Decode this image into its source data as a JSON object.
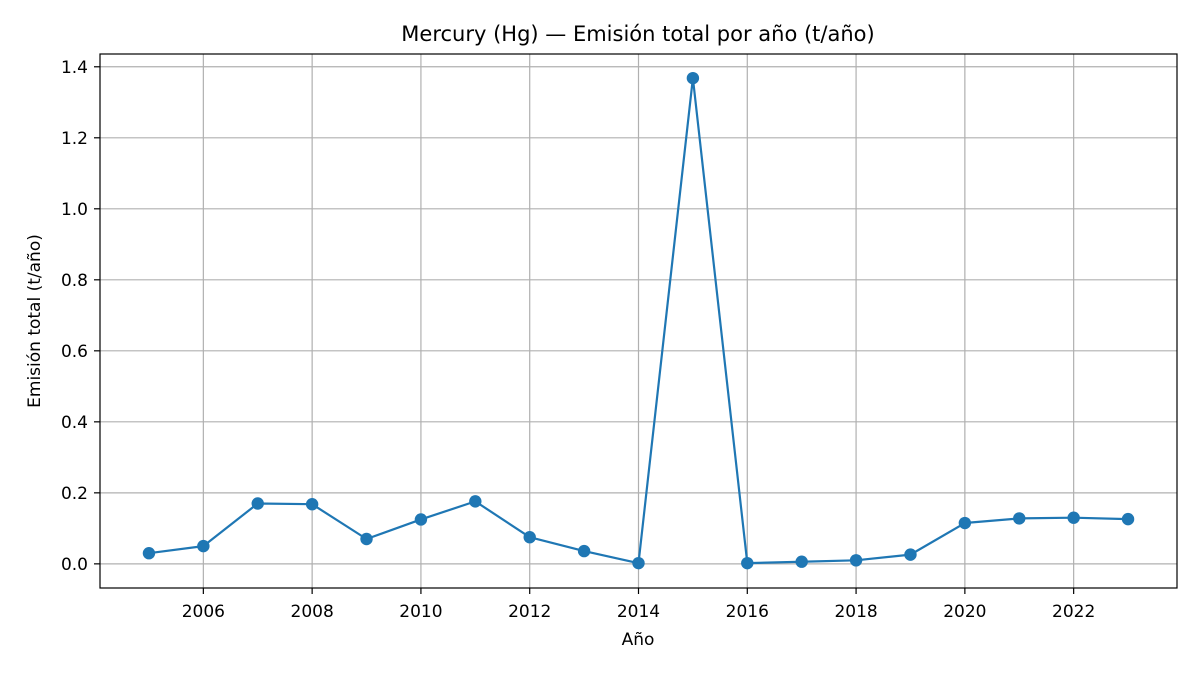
{
  "chart_data": {
    "type": "line",
    "title": "Mercury (Hg) — Emisión total por año (t/año)",
    "xlabel": "Año",
    "ylabel": "Emisión total (t/año)",
    "x": [
      2005,
      2006,
      2007,
      2008,
      2009,
      2010,
      2011,
      2012,
      2013,
      2014,
      2015,
      2016,
      2017,
      2018,
      2019,
      2020,
      2021,
      2022,
      2023
    ],
    "series": [
      {
        "values": [
          0.03,
          0.05,
          0.17,
          0.168,
          0.07,
          0.125,
          0.176,
          0.075,
          0.036,
          0.002,
          1.368,
          0.002,
          0.006,
          0.01,
          0.026,
          0.115,
          0.128,
          0.13,
          0.126
        ],
        "color": "#1f77b4",
        "marker": "circle"
      }
    ],
    "xlim": [
      2004.1,
      2023.9
    ],
    "ylim": [
      -0.068,
      1.436
    ],
    "xticks": [
      2006,
      2008,
      2010,
      2012,
      2014,
      2016,
      2018,
      2020,
      2022
    ],
    "yticks": [
      0.0,
      0.2,
      0.4,
      0.6,
      0.8,
      1.0,
      1.2,
      1.4
    ],
    "xtick_labels": [
      "2006",
      "2008",
      "2010",
      "2012",
      "2014",
      "2016",
      "2018",
      "2020",
      "2022"
    ],
    "ytick_labels": [
      "0.0",
      "0.2",
      "0.4",
      "0.6",
      "0.8",
      "1.0",
      "1.2",
      "1.4"
    ],
    "grid": true,
    "legend": false
  }
}
